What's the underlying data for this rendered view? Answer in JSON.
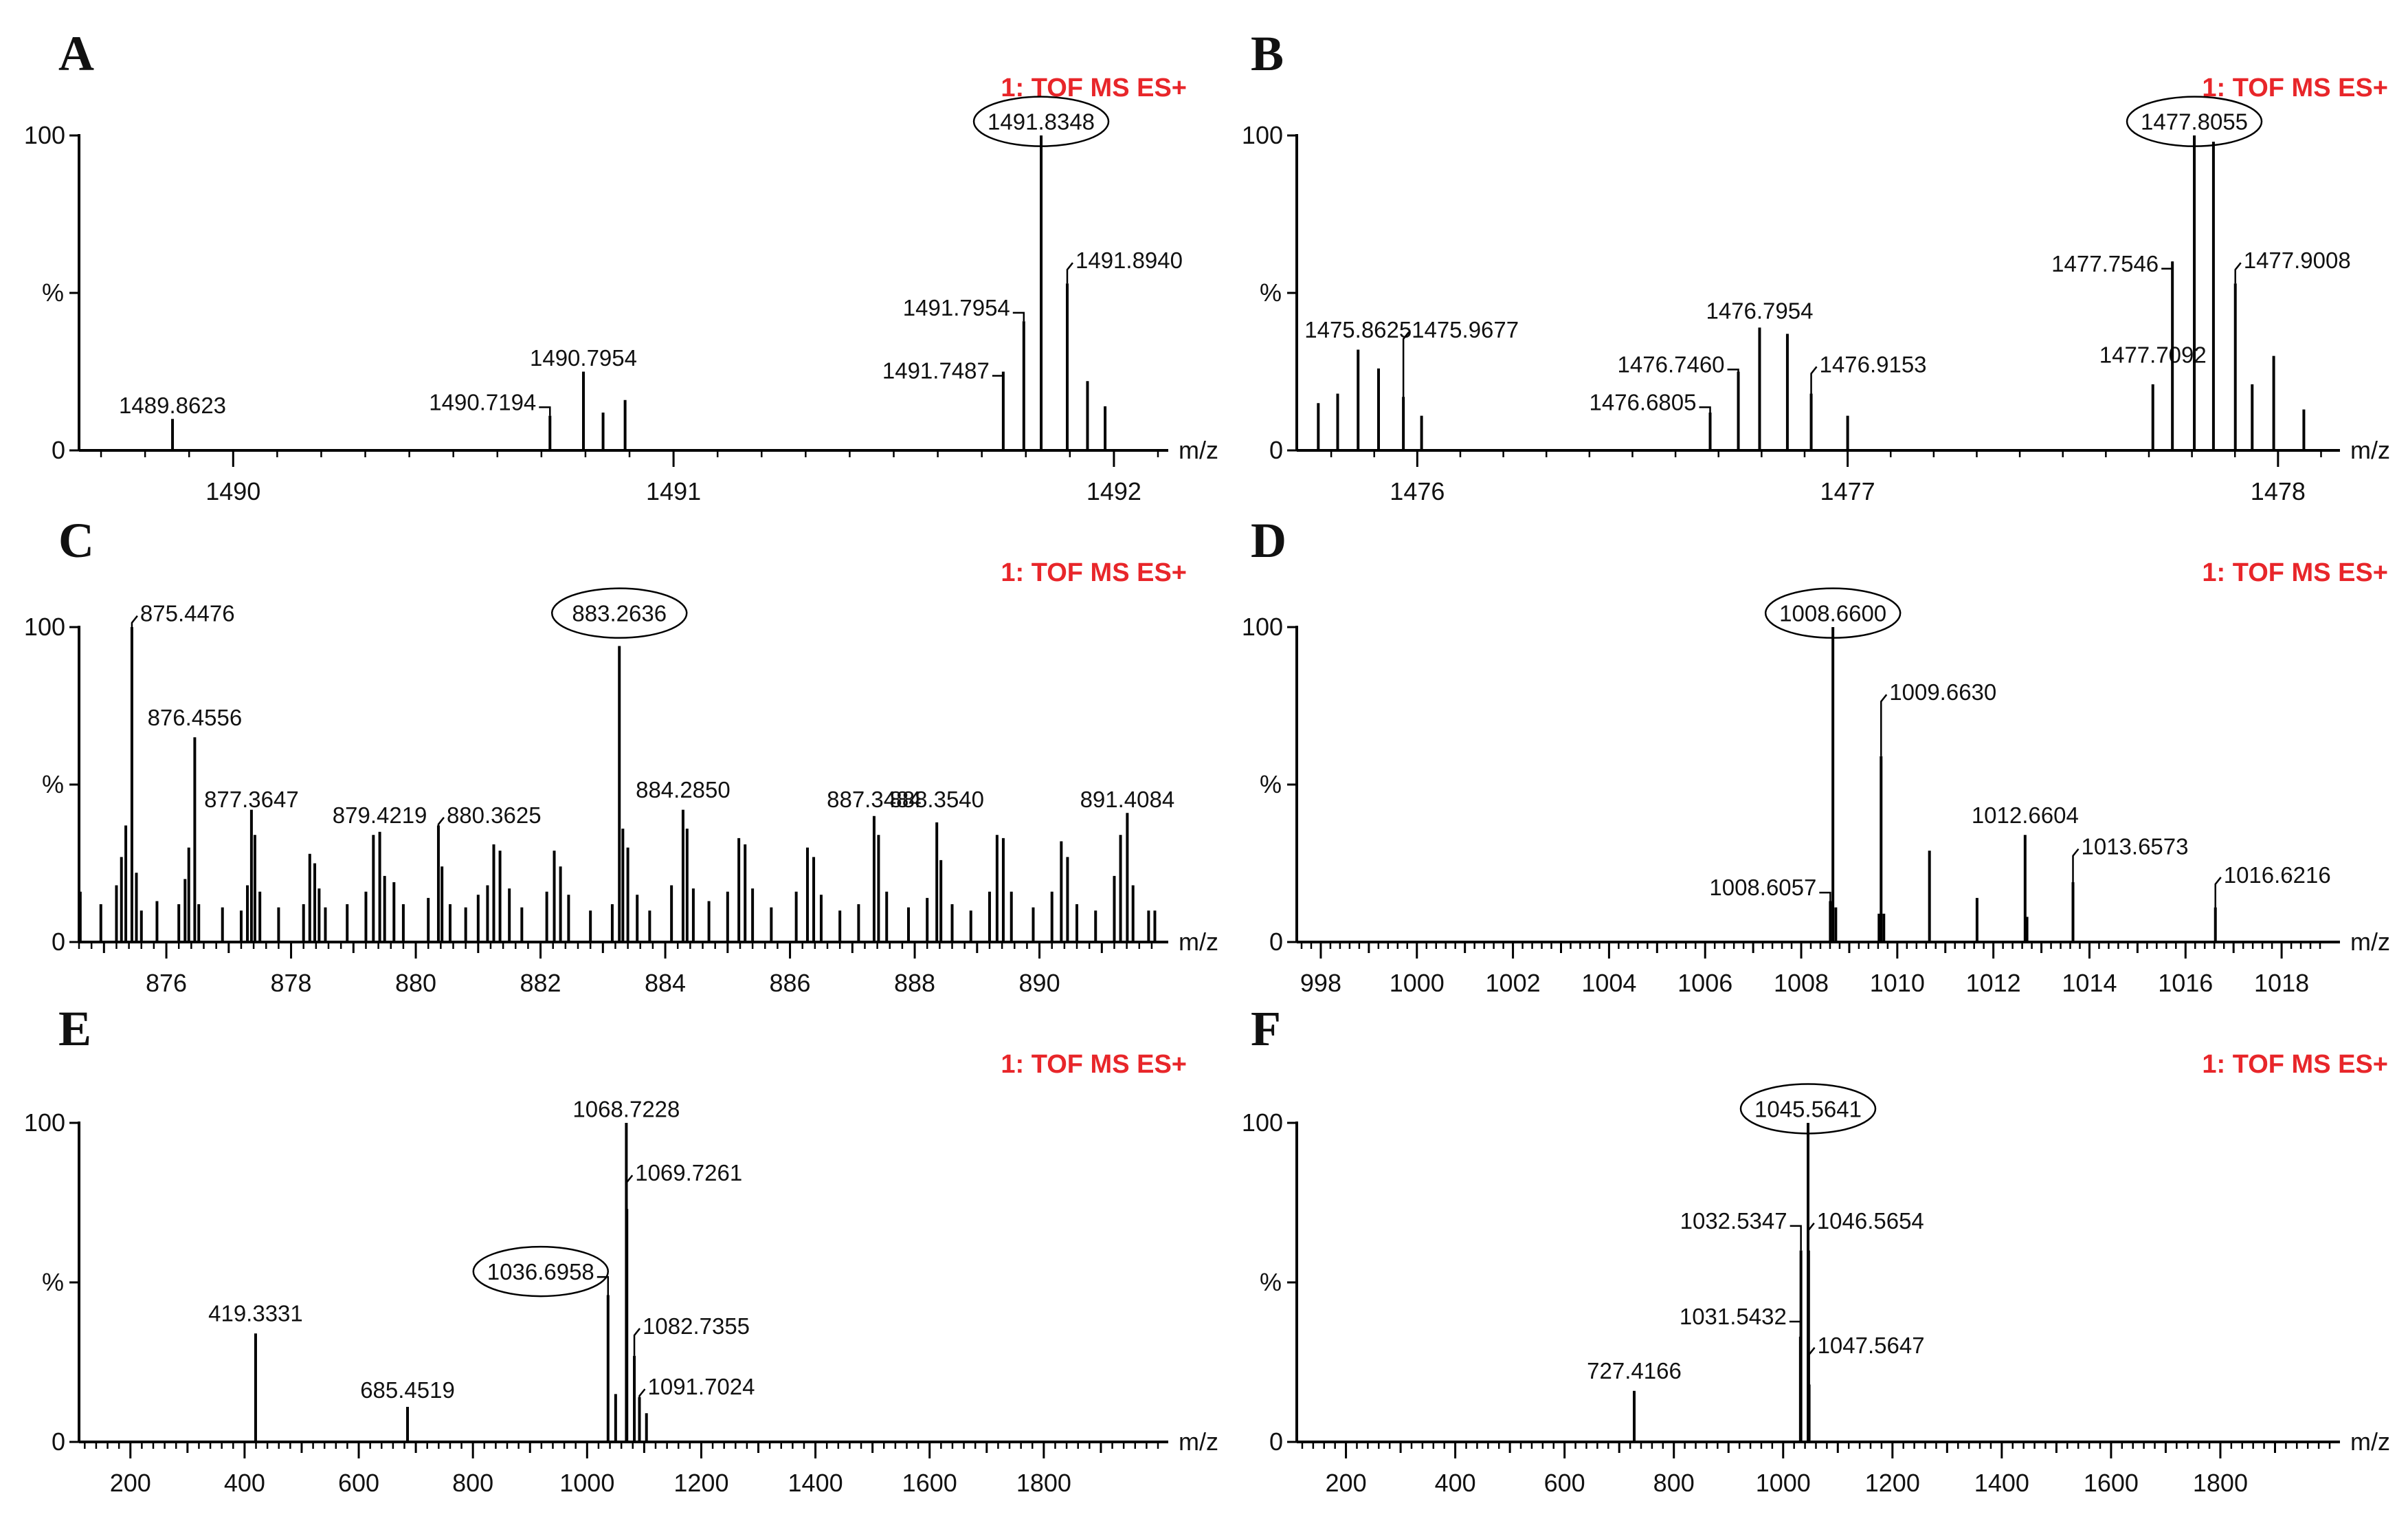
{
  "chart_data": [
    {
      "panel": "A",
      "type": "bar",
      "header": "1: TOF MS ES+",
      "xlabel": "m/z",
      "ylabel": "%",
      "xlim": [
        1489.65,
        1492.1
      ],
      "xticks": [
        1490,
        1491,
        1492
      ],
      "xminor": [],
      "ylim": [
        0,
        100
      ],
      "yticks": [
        0,
        50,
        100
      ],
      "ytick_labels": [
        "0",
        "",
        "100"
      ],
      "peaks": [
        {
          "x": 1489.8623,
          "y": 10,
          "label": "1489.8623",
          "lx": 0,
          "ly": 14
        },
        {
          "x": 1490.7194,
          "y": 11,
          "label": "1490.7194",
          "lx": -1,
          "ly": 15,
          "leader": true
        },
        {
          "x": 1490.7954,
          "y": 25,
          "label": "1490.7954",
          "lx": 0,
          "ly": 29
        },
        {
          "x": 1490.84,
          "y": 12
        },
        {
          "x": 1490.89,
          "y": 16
        },
        {
          "x": 1491.7487,
          "y": 25,
          "label": "1491.7487",
          "lx": -1,
          "ly": 25,
          "leader": true
        },
        {
          "x": 1491.7954,
          "y": 41,
          "label": "1491.7954",
          "lx": -1,
          "ly": 45,
          "leader": true
        },
        {
          "x": 1491.8348,
          "y": 100,
          "label": "1491.8348",
          "lx": 0,
          "ly": 104,
          "circled": true
        },
        {
          "x": 1491.894,
          "y": 53,
          "label": "1491.8940",
          "lx": 1,
          "ly": 60,
          "leader": true
        },
        {
          "x": 1491.94,
          "y": 22
        },
        {
          "x": 1491.98,
          "y": 14
        }
      ]
    },
    {
      "panel": "B",
      "type": "bar",
      "header": "1: TOF MS ES+",
      "xlabel": "m/z",
      "ylabel": "%",
      "xlim": [
        1475.72,
        1478.12
      ],
      "xticks": [
        1476,
        1477,
        1478
      ],
      "xminor": [],
      "ylim": [
        0,
        100
      ],
      "yticks": [
        0,
        50,
        100
      ],
      "ytick_labels": [
        "0",
        "",
        "100"
      ],
      "peaks": [
        {
          "x": 1475.77,
          "y": 15
        },
        {
          "x": 1475.815,
          "y": 18
        },
        {
          "x": 1475.8625,
          "y": 32,
          "label": "1475.8625",
          "lx": 0,
          "ly": 38
        },
        {
          "x": 1475.91,
          "y": 26
        },
        {
          "x": 1475.9677,
          "y": 17,
          "label": "1475.9677",
          "lx": 1,
          "ly": 38,
          "leader": true
        },
        {
          "x": 1476.01,
          "y": 11
        },
        {
          "x": 1476.6805,
          "y": 12,
          "label": "1476.6805",
          "lx": -1,
          "ly": 15,
          "leader": true
        },
        {
          "x": 1476.746,
          "y": 25,
          "label": "1476.7460",
          "lx": -1,
          "ly": 27,
          "leader": true
        },
        {
          "x": 1476.7954,
          "y": 39,
          "label": "1476.7954",
          "lx": 0,
          "ly": 44
        },
        {
          "x": 1476.86,
          "y": 37
        },
        {
          "x": 1476.9153,
          "y": 18,
          "label": "1476.9153",
          "lx": 1,
          "ly": 27,
          "leader": true
        },
        {
          "x": 1477.0,
          "y": 11
        },
        {
          "x": 1477.7092,
          "y": 21,
          "label": "1477.7092",
          "lx": 0,
          "ly": 30
        },
        {
          "x": 1477.7546,
          "y": 60,
          "label": "1477.7546",
          "lx": -1,
          "ly": 59,
          "leader": true
        },
        {
          "x": 1477.8055,
          "y": 100,
          "label": "1477.8055",
          "lx": 0,
          "ly": 104,
          "circled": true
        },
        {
          "x": 1477.85,
          "y": 98
        },
        {
          "x": 1477.9008,
          "y": 53,
          "label": "1477.9008",
          "lx": 1,
          "ly": 60,
          "leader": true
        },
        {
          "x": 1477.94,
          "y": 21
        },
        {
          "x": 1477.99,
          "y": 30
        },
        {
          "x": 1478.06,
          "y": 13
        }
      ]
    },
    {
      "panel": "C",
      "type": "bar",
      "header": "1: TOF MS ES+",
      "xlabel": "m/z",
      "ylabel": "%",
      "xlim": [
        874.6,
        891.9
      ],
      "xticks": [
        876,
        878,
        880,
        882,
        884,
        886,
        888,
        890
      ],
      "xminor": [
        875,
        877,
        879,
        881,
        883,
        885,
        887,
        889,
        891
      ],
      "ylim": [
        0,
        100
      ],
      "yticks": [
        0,
        50,
        100
      ],
      "ytick_labels": [
        "0",
        "",
        "100"
      ],
      "peaks": [
        {
          "x": 874.62,
          "y": 16
        },
        {
          "x": 874.95,
          "y": 12
        },
        {
          "x": 875.2,
          "y": 18
        },
        {
          "x": 875.28,
          "y": 27
        },
        {
          "x": 875.35,
          "y": 37
        },
        {
          "x": 875.4476,
          "y": 100,
          "label": "875.4476",
          "lx": 1,
          "ly": 104,
          "leader": true
        },
        {
          "x": 875.52,
          "y": 22
        },
        {
          "x": 875.6,
          "y": 10
        },
        {
          "x": 875.85,
          "y": 13
        },
        {
          "x": 876.2,
          "y": 12
        },
        {
          "x": 876.3,
          "y": 20
        },
        {
          "x": 876.36,
          "y": 30
        },
        {
          "x": 876.4556,
          "y": 65,
          "label": "876.4556",
          "lx": 0,
          "ly": 71
        },
        {
          "x": 876.52,
          "y": 12
        },
        {
          "x": 876.9,
          "y": 11
        },
        {
          "x": 877.2,
          "y": 10
        },
        {
          "x": 877.3,
          "y": 18
        },
        {
          "x": 877.3647,
          "y": 42,
          "label": "877.3647",
          "lx": 0,
          "ly": 45
        },
        {
          "x": 877.42,
          "y": 34
        },
        {
          "x": 877.5,
          "y": 16
        },
        {
          "x": 877.8,
          "y": 11
        },
        {
          "x": 878.2,
          "y": 12
        },
        {
          "x": 878.3,
          "y": 28
        },
        {
          "x": 878.38,
          "y": 25
        },
        {
          "x": 878.45,
          "y": 17
        },
        {
          "x": 878.55,
          "y": 11
        },
        {
          "x": 878.9,
          "y": 12
        },
        {
          "x": 879.2,
          "y": 16
        },
        {
          "x": 879.32,
          "y": 34
        },
        {
          "x": 879.4219,
          "y": 35,
          "label": "879.4219",
          "lx": 0,
          "ly": 40
        },
        {
          "x": 879.5,
          "y": 21
        },
        {
          "x": 879.65,
          "y": 19
        },
        {
          "x": 879.8,
          "y": 12
        },
        {
          "x": 880.2,
          "y": 14
        },
        {
          "x": 880.3625,
          "y": 37,
          "label": "880.3625",
          "lx": 1,
          "ly": 40,
          "leader": true
        },
        {
          "x": 880.42,
          "y": 24
        },
        {
          "x": 880.55,
          "y": 12
        },
        {
          "x": 880.8,
          "y": 11
        },
        {
          "x": 881.0,
          "y": 15
        },
        {
          "x": 881.15,
          "y": 18
        },
        {
          "x": 881.25,
          "y": 31
        },
        {
          "x": 881.35,
          "y": 29
        },
        {
          "x": 881.5,
          "y": 17
        },
        {
          "x": 881.7,
          "y": 11
        },
        {
          "x": 882.1,
          "y": 16
        },
        {
          "x": 882.22,
          "y": 29
        },
        {
          "x": 882.32,
          "y": 24
        },
        {
          "x": 882.45,
          "y": 15
        },
        {
          "x": 882.8,
          "y": 10
        },
        {
          "x": 883.15,
          "y": 12
        },
        {
          "x": 883.2636,
          "y": 94,
          "label": "883.2636",
          "lx": 0,
          "ly": 104,
          "circled": true
        },
        {
          "x": 883.32,
          "y": 36
        },
        {
          "x": 883.4,
          "y": 30
        },
        {
          "x": 883.55,
          "y": 15
        },
        {
          "x": 883.75,
          "y": 10
        },
        {
          "x": 884.1,
          "y": 18
        },
        {
          "x": 884.285,
          "y": 42,
          "label": "884.2850",
          "lx": 0,
          "ly": 48
        },
        {
          "x": 884.35,
          "y": 36
        },
        {
          "x": 884.45,
          "y": 17
        },
        {
          "x": 884.7,
          "y": 13
        },
        {
          "x": 885.0,
          "y": 16
        },
        {
          "x": 885.18,
          "y": 33
        },
        {
          "x": 885.28,
          "y": 31
        },
        {
          "x": 885.4,
          "y": 17
        },
        {
          "x": 885.7,
          "y": 11
        },
        {
          "x": 886.1,
          "y": 16
        },
        {
          "x": 886.28,
          "y": 30
        },
        {
          "x": 886.38,
          "y": 27
        },
        {
          "x": 886.5,
          "y": 15
        },
        {
          "x": 886.8,
          "y": 10
        },
        {
          "x": 887.1,
          "y": 12
        },
        {
          "x": 887.3484,
          "y": 40,
          "label": "887.3484",
          "lx": 0,
          "ly": 45
        },
        {
          "x": 887.42,
          "y": 34
        },
        {
          "x": 887.55,
          "y": 16
        },
        {
          "x": 887.9,
          "y": 11
        },
        {
          "x": 888.2,
          "y": 14
        },
        {
          "x": 888.354,
          "y": 38,
          "label": "888.3540",
          "lx": 0,
          "ly": 45
        },
        {
          "x": 888.42,
          "y": 26
        },
        {
          "x": 888.6,
          "y": 12
        },
        {
          "x": 888.9,
          "y": 10
        },
        {
          "x": 889.2,
          "y": 16
        },
        {
          "x": 889.32,
          "y": 34
        },
        {
          "x": 889.42,
          "y": 33
        },
        {
          "x": 889.55,
          "y": 16
        },
        {
          "x": 889.9,
          "y": 11
        },
        {
          "x": 890.2,
          "y": 16
        },
        {
          "x": 890.35,
          "y": 32
        },
        {
          "x": 890.45,
          "y": 27
        },
        {
          "x": 890.6,
          "y": 12
        },
        {
          "x": 890.9,
          "y": 10
        },
        {
          "x": 891.2,
          "y": 21
        },
        {
          "x": 891.3,
          "y": 34
        },
        {
          "x": 891.4084,
          "y": 41,
          "label": "891.4084",
          "lx": 0,
          "ly": 45
        },
        {
          "x": 891.5,
          "y": 18
        },
        {
          "x": 891.75,
          "y": 10
        },
        {
          "x": 891.85,
          "y": 10
        }
      ]
    },
    {
      "panel": "D",
      "type": "bar",
      "header": "1: TOF MS ES+",
      "xlabel": "m/z",
      "ylabel": "%",
      "xlim": [
        997.5,
        1019.0
      ],
      "xticks": [
        998,
        1000,
        1002,
        1004,
        1006,
        1008,
        1010,
        1012,
        1014,
        1016,
        1018
      ],
      "xminor": [
        999,
        1001,
        1003,
        1005,
        1007,
        1009,
        1011,
        1013,
        1015,
        1017
      ],
      "ylim": [
        0,
        100
      ],
      "yticks": [
        0,
        50,
        100
      ],
      "ytick_labels": [
        "0",
        "",
        "100"
      ],
      "peaks": [
        {
          "x": 1008.6057,
          "y": 13,
          "label": "1008.6057",
          "lx": -1,
          "ly": 17,
          "leader": true
        },
        {
          "x": 1008.66,
          "y": 100,
          "label": "1008.6600",
          "lx": 0,
          "ly": 104,
          "circled": true
        },
        {
          "x": 1008.72,
          "y": 11
        },
        {
          "x": 1009.62,
          "y": 9
        },
        {
          "x": 1009.663,
          "y": 59,
          "label": "1009.6630",
          "lx": 1,
          "ly": 79,
          "leader": true
        },
        {
          "x": 1009.72,
          "y": 9
        },
        {
          "x": 1010.67,
          "y": 29
        },
        {
          "x": 1011.66,
          "y": 14
        },
        {
          "x": 1012.6604,
          "y": 34,
          "label": "1012.6604",
          "lx": 0,
          "ly": 40
        },
        {
          "x": 1012.7,
          "y": 8
        },
        {
          "x": 1013.6573,
          "y": 19,
          "label": "1013.6573",
          "lx": 1,
          "ly": 30,
          "leader": true
        },
        {
          "x": 1016.6216,
          "y": 11,
          "label": "1016.6216",
          "lx": 1,
          "ly": 21,
          "leader": true
        }
      ]
    },
    {
      "panel": "E",
      "type": "bar",
      "header": "1: TOF MS ES+",
      "xlabel": "m/z",
      "ylabel": "%",
      "xlim": [
        110,
        2000
      ],
      "xticks": [
        200,
        400,
        600,
        800,
        1000,
        1200,
        1400,
        1600,
        1800
      ],
      "xminor": [
        300,
        500,
        700,
        900,
        1100,
        1300,
        1500,
        1700,
        1900
      ],
      "ylim": [
        0,
        100
      ],
      "yticks": [
        0,
        50,
        100
      ],
      "ytick_labels": [
        "0",
        "",
        "100"
      ],
      "peaks": [
        {
          "x": 419.3331,
          "y": 34,
          "label": "419.3331",
          "lx": 0,
          "ly": 40
        },
        {
          "x": 685.4519,
          "y": 11,
          "label": "685.4519",
          "lx": 0,
          "ly": 16
        },
        {
          "x": 1036.6958,
          "y": 46,
          "label": "1036.6958",
          "lx": -1,
          "ly": 53,
          "leader": true,
          "circled": true
        },
        {
          "x": 1050,
          "y": 15
        },
        {
          "x": 1068.7228,
          "y": 100,
          "label": "1068.7228",
          "lx": 0,
          "ly": 104
        },
        {
          "x": 1069.7261,
          "y": 73,
          "label": "1069.7261",
          "lx": 1,
          "ly": 84,
          "leader": true
        },
        {
          "x": 1082.7355,
          "y": 27,
          "label": "1082.7355",
          "lx": 1,
          "ly": 36,
          "leader": true
        },
        {
          "x": 1091.7024,
          "y": 14,
          "label": "1091.7024",
          "lx": 1,
          "ly": 17,
          "leader": true
        },
        {
          "x": 1104,
          "y": 9
        }
      ]
    },
    {
      "panel": "F",
      "type": "bar",
      "header": "1: TOF MS ES+",
      "xlabel": "m/z",
      "ylabel": "%",
      "xlim": [
        110,
        2000
      ],
      "xticks": [
        200,
        400,
        600,
        800,
        1000,
        1200,
        1400,
        1600,
        1800
      ],
      "xminor": [
        300,
        500,
        700,
        900,
        1100,
        1300,
        1500,
        1700,
        1900
      ],
      "ylim": [
        0,
        100
      ],
      "yticks": [
        0,
        50,
        100
      ],
      "ytick_labels": [
        "0",
        "",
        "100"
      ],
      "peaks": [
        {
          "x": 727.4166,
          "y": 16,
          "label": "727.4166",
          "lx": 0,
          "ly": 22
        },
        {
          "x": 1031.5432,
          "y": 33,
          "label": "1031.5432",
          "lx": -1,
          "ly": 39,
          "leader": true
        },
        {
          "x": 1032.5347,
          "y": 60,
          "label": "1032.5347",
          "lx": -1,
          "ly": 69,
          "leader": true
        },
        {
          "x": 1045.5641,
          "y": 100,
          "label": "1045.5641",
          "lx": 0,
          "ly": 104,
          "circled": true
        },
        {
          "x": 1046.5654,
          "y": 60,
          "label": "1046.5654",
          "lx": 1,
          "ly": 69,
          "leader": true
        },
        {
          "x": 1047.5647,
          "y": 18,
          "label": "1047.5647",
          "lx": 1,
          "ly": 30,
          "leader": true
        }
      ]
    }
  ]
}
